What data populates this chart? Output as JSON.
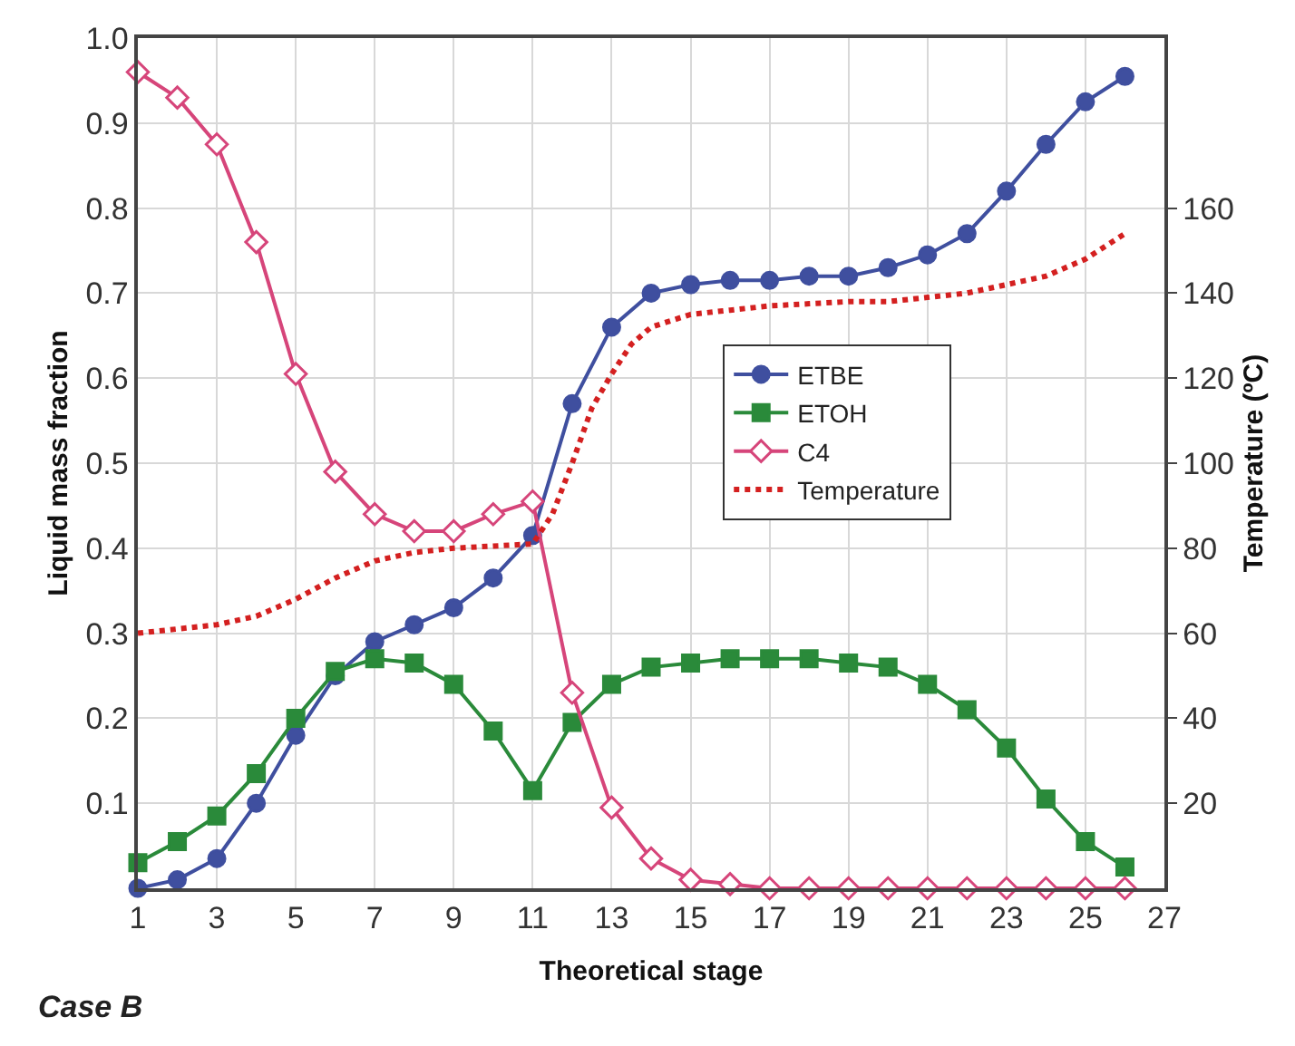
{
  "chart_data": {
    "type": "line",
    "xlabel": "Theoretical stage",
    "ylabel": "Liquid mass fraction",
    "y2label": "Temperature (ºC)",
    "x": [
      1,
      2,
      3,
      4,
      5,
      6,
      7,
      8,
      9,
      10,
      11,
      12,
      13,
      14,
      15,
      16,
      17,
      18,
      19,
      20,
      21,
      22,
      23,
      24,
      25,
      26
    ],
    "xlim": [
      1,
      27
    ],
    "xticks": [
      1,
      3,
      5,
      7,
      9,
      11,
      13,
      15,
      17,
      19,
      21,
      23,
      25,
      27
    ],
    "ylim": [
      0,
      1
    ],
    "yticks": [
      0.1,
      0.2,
      0.3,
      0.4,
      0.5,
      0.6,
      0.7,
      0.8,
      0.9,
      "1.0"
    ],
    "y2lim": [
      0,
      200
    ],
    "y2ticks": [
      20,
      40,
      60,
      80,
      100,
      120,
      140,
      160
    ],
    "grid": true,
    "legend": "right",
    "line_style": "solid",
    "annotations": [
      "Case B"
    ],
    "series": [
      {
        "name": "ETBE",
        "color": "#3f4f9f",
        "marker": "circle",
        "values": [
          0.0,
          0.01,
          0.035,
          0.1,
          0.18,
          0.25,
          0.29,
          0.31,
          0.33,
          0.365,
          0.415,
          0.57,
          0.66,
          0.7,
          0.71,
          0.715,
          0.715,
          0.72,
          0.72,
          0.73,
          0.745,
          0.77,
          0.82,
          0.875,
          0.925,
          0.955
        ]
      },
      {
        "name": "ETOH",
        "color": "#2a8a3a",
        "marker": "square",
        "values": [
          0.03,
          0.055,
          0.085,
          0.135,
          0.2,
          0.255,
          0.27,
          0.265,
          0.24,
          0.185,
          0.115,
          0.195,
          0.24,
          0.26,
          0.265,
          0.27,
          0.27,
          0.27,
          0.265,
          0.26,
          0.24,
          0.21,
          0.165,
          0.105,
          0.055,
          0.025
        ]
      },
      {
        "name": "C4",
        "color": "#d6457a",
        "marker": "diamond",
        "values": [
          0.96,
          0.93,
          0.875,
          0.76,
          0.605,
          0.49,
          0.44,
          0.42,
          0.42,
          0.44,
          0.455,
          0.23,
          0.095,
          0.035,
          0.01,
          0.005,
          0,
          0,
          0,
          0,
          0,
          0,
          0,
          0,
          0,
          0
        ]
      },
      {
        "name": "Temperature",
        "color": "#d42020",
        "marker": "none",
        "line_style": "dotted",
        "axis": "y2",
        "x": [
          1,
          2,
          3,
          4,
          5,
          6,
          7,
          8,
          9,
          10,
          11,
          11.5,
          12,
          12.5,
          13,
          13.5,
          14,
          15,
          16,
          17,
          18,
          19,
          20,
          21,
          22,
          23,
          24,
          25,
          26
        ],
        "values": [
          60,
          61,
          62,
          64,
          68,
          73,
          77,
          79,
          80,
          80.5,
          81,
          88,
          100,
          113,
          121,
          128,
          132,
          135,
          136,
          137,
          137.5,
          138,
          138,
          139,
          140,
          142,
          144,
          148,
          154
        ]
      }
    ]
  }
}
